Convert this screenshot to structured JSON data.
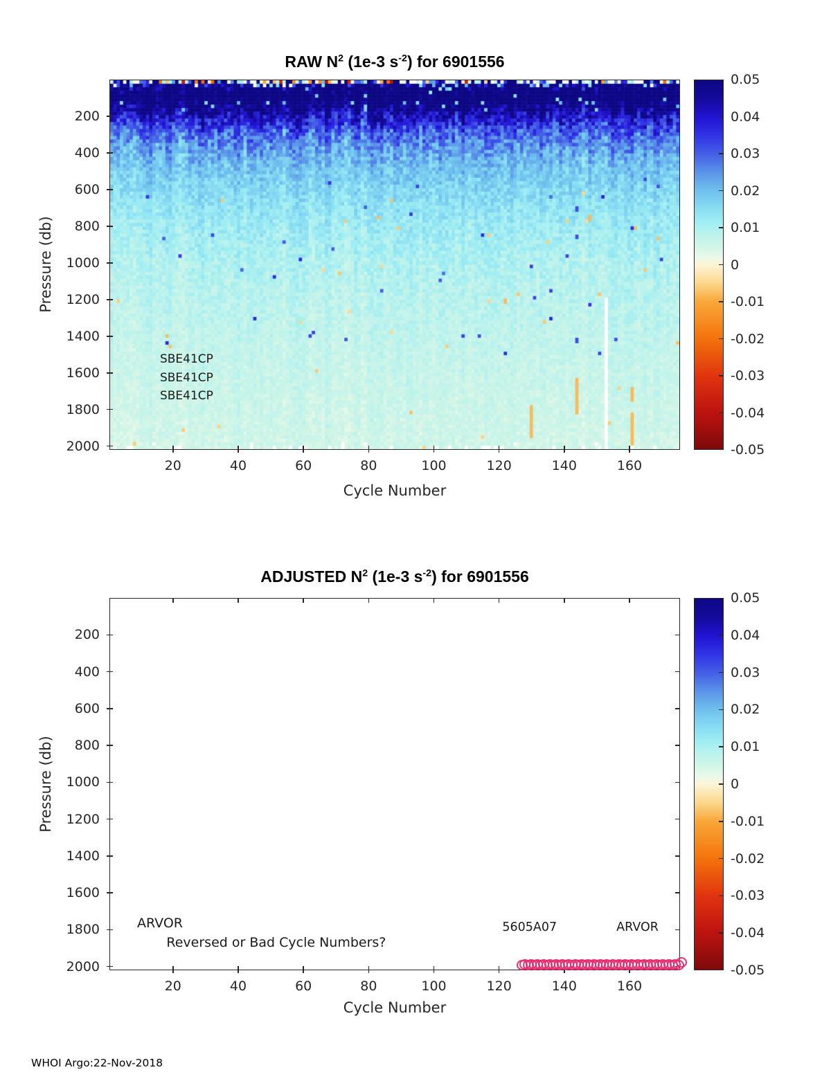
{
  "footer": "WHOI Argo:22-Nov-2018",
  "palette": {
    "axis_color": "#262626",
    "tick_label_color": "#262626",
    "title_color": "#000000",
    "marker_pink": "#ea2f70",
    "background": "#ffffff"
  },
  "axes": {
    "x": {
      "label": "Cycle Number",
      "min": 0.5,
      "max": 175.5,
      "ticks": [
        20,
        40,
        60,
        80,
        100,
        120,
        140,
        160
      ]
    },
    "y": {
      "label": "Pressure (db)",
      "min": 0,
      "max": 2020,
      "ticks": [
        200,
        400,
        600,
        800,
        1000,
        1200,
        1400,
        1600,
        1800,
        2000
      ]
    }
  },
  "colorbar": {
    "labels": [
      "0.05",
      "0.04",
      "0.03",
      "0.02",
      "0.01",
      "0",
      "-0.01",
      "-0.02",
      "-0.03",
      "-0.04",
      "-0.05"
    ],
    "clim": [
      -0.05,
      0.05
    ],
    "gradient_stops": [
      {
        "v": 0.05,
        "c": "#0d0784"
      },
      {
        "v": 0.045,
        "c": "#140a9c"
      },
      {
        "v": 0.04,
        "c": "#2113d2"
      },
      {
        "v": 0.035,
        "c": "#3133e6"
      },
      {
        "v": 0.03,
        "c": "#445ee6"
      },
      {
        "v": 0.025,
        "c": "#5b94e8"
      },
      {
        "v": 0.02,
        "c": "#6fc1ee"
      },
      {
        "v": 0.015,
        "c": "#8adef2"
      },
      {
        "v": 0.012,
        "c": "#9cecf4"
      },
      {
        "v": 0.008,
        "c": "#bdf3ec"
      },
      {
        "v": 0.005,
        "c": "#d0f5e7"
      },
      {
        "v": 0.002,
        "c": "#eaf9e9"
      },
      {
        "v": 0.0,
        "c": "#fdf4d7"
      },
      {
        "v": -0.005,
        "c": "#fbd78a"
      },
      {
        "v": -0.01,
        "c": "#f9a73a"
      },
      {
        "v": -0.02,
        "c": "#f3730b"
      },
      {
        "v": -0.03,
        "c": "#e1350f"
      },
      {
        "v": -0.04,
        "c": "#bd1311"
      },
      {
        "v": -0.05,
        "c": "#7e0a0a"
      }
    ]
  },
  "chart_data": [
    {
      "type": "heatmap",
      "title_parts": {
        "pre": "RAW N",
        "sup1": "2",
        "mid": " (1e-3 s",
        "sup2": "-2",
        "post": ") for 6901556"
      },
      "title_text": "RAW N^2 (1e-3 s^-2) for 6901556",
      "xlabel": "Cycle Number",
      "ylabel": "Pressure (db)",
      "x_range": [
        1,
        175
      ],
      "y_range": [
        0,
        2020
      ],
      "value_units": "1e-3 s^-2",
      "clim": [
        -0.05,
        0.05
      ],
      "description": "Stratification N^2 vs cycle and pressure: surface speckle of positive and negative values, near-saturated dark blue band to ~150 db, decaying through blue and cyan to pale green-cyan by 2000 db",
      "profile_mean": [
        [
          8,
          0.055
        ],
        [
          90,
          0.053
        ],
        [
          160,
          0.047
        ],
        [
          220,
          0.038
        ],
        [
          280,
          0.03
        ],
        [
          340,
          0.026
        ],
        [
          420,
          0.021
        ],
        [
          520,
          0.018
        ],
        [
          650,
          0.0145
        ],
        [
          800,
          0.012
        ],
        [
          1000,
          0.0095
        ],
        [
          1250,
          0.008
        ],
        [
          1500,
          0.0068
        ],
        [
          1750,
          0.0058
        ],
        [
          2010,
          0.005
        ]
      ],
      "profile_spread": [
        [
          8,
          0.02
        ],
        [
          90,
          0.005
        ],
        [
          180,
          0.01
        ],
        [
          260,
          0.009
        ],
        [
          350,
          0.007
        ],
        [
          500,
          0.0045
        ],
        [
          700,
          0.0035
        ],
        [
          1000,
          0.003
        ],
        [
          1400,
          0.0022
        ],
        [
          2010,
          0.002
        ]
      ],
      "features": [
        {
          "kind": "white_column",
          "cycle": 153,
          "p0": 1190,
          "p1": 2020
        },
        {
          "kind": "orange_dash",
          "cycle": 144,
          "p0": 1630,
          "p1": 1830
        },
        {
          "kind": "orange_dash",
          "cycle": 130,
          "p0": 1780,
          "p1": 1960
        },
        {
          "kind": "orange_dash",
          "cycle": 161,
          "p0": 1680,
          "p1": 1760
        },
        {
          "kind": "orange_dash",
          "cycle": 161,
          "p0": 1820,
          "p1": 2000
        },
        {
          "kind": "orange_dot",
          "cycle": 148,
          "p0": 735,
          "p1": 770
        },
        {
          "kind": "orange_dot",
          "cycle": 122,
          "p0": 1195,
          "p1": 1225
        },
        {
          "kind": "blue_dot",
          "cycle": 144,
          "p0": 1410,
          "p1": 1440
        },
        {
          "kind": "blue_dot",
          "cycle": 144,
          "p0": 690,
          "p1": 720
        },
        {
          "kind": "blue_dot",
          "cycle": 144,
          "p0": 845,
          "p1": 870
        }
      ],
      "annotations": [
        {
          "text": "SBE41CP",
          "cycle": 16,
          "pressure": 1530,
          "size": 17
        },
        {
          "text": "SBE41CP",
          "cycle": 16,
          "pressure": 1630,
          "size": 17
        },
        {
          "text": "SBE41CP",
          "cycle": 16,
          "pressure": 1730,
          "size": 17
        }
      ]
    },
    {
      "type": "scatter",
      "title_parts": {
        "pre": "ADJUSTED N",
        "sup1": "2",
        "mid": " (1e-3 s",
        "sup2": "-2",
        "post": ") for 6901556"
      },
      "title_text": "ADJUSTED N^2 (1e-3 s^-2) for 6901556",
      "xlabel": "Cycle Number",
      "ylabel": "Pressure (db)",
      "x_range": [
        1,
        175
      ],
      "y_range": [
        0,
        2020
      ],
      "series": [
        {
          "name": "flagged-cycles",
          "marker": "circle-outline",
          "color": "#ea2f70",
          "pressure": 1990,
          "cycle_start": 127,
          "cycle_end": 176,
          "count": 52
        }
      ],
      "annotations": [
        {
          "text": "ARVOR",
          "cycle": 9,
          "pressure": 1770,
          "size": 19
        },
        {
          "text": "Reversed or Bad Cycle Numbers?",
          "cycle": 18,
          "pressure": 1872,
          "size": 19
        },
        {
          "text": "5605A07",
          "cycle": 121,
          "pressure": 1790,
          "size": 17.5
        },
        {
          "text": "ARVOR",
          "cycle": 156,
          "pressure": 1790,
          "size": 17.5
        }
      ]
    }
  ]
}
